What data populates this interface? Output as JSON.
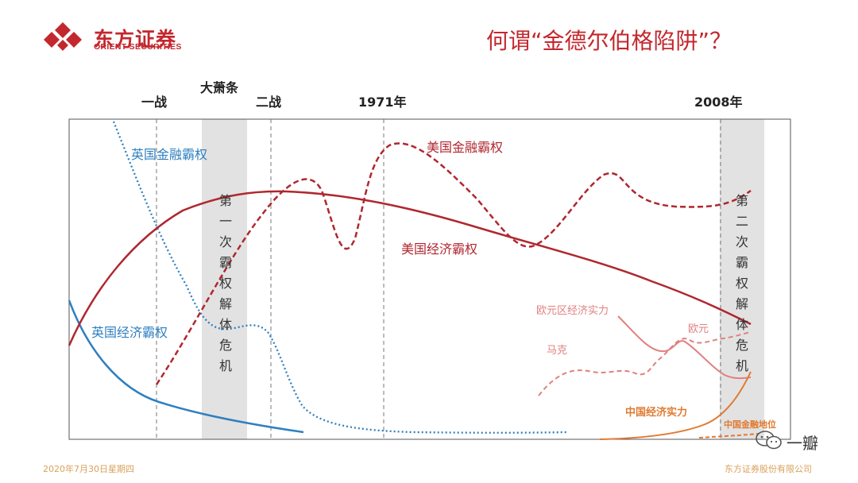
{
  "brand": {
    "name": "东方证券",
    "name_en": "ORIENT SECURITIES",
    "accent": "#c3282e"
  },
  "header": {
    "title": "何谓“金德尔伯格陷阱”？"
  },
  "timeline": {
    "events": [
      "一战",
      "大萧条",
      "二战",
      "1971年",
      "2008年"
    ]
  },
  "bands": {
    "first_crisis": "第一次霸权解体危机",
    "second_crisis": "第二次霸权解体危机"
  },
  "labels": {
    "uk_finance": "英国金融霸权",
    "uk_economy": "英国经济霸权",
    "us_finance": "美国金融霸权",
    "us_economy": "美国经济霸权",
    "eurozone": "欧元区经济实力",
    "mark": "马克",
    "euro": "欧元",
    "china_economy": "中国经济实力",
    "china_finance": "中国金融地位"
  },
  "colors": {
    "uk": "#2f7fbf",
    "us": "#b0272f",
    "euro": "#e08080",
    "china": "#e07a30",
    "band": "#e2e2e2"
  },
  "footer": {
    "date": "2020年7月30日星期四",
    "company": "东方证券股份有限公司"
  },
  "watermark": {
    "text": "一瓣",
    "icon": "wechat-icon"
  }
}
